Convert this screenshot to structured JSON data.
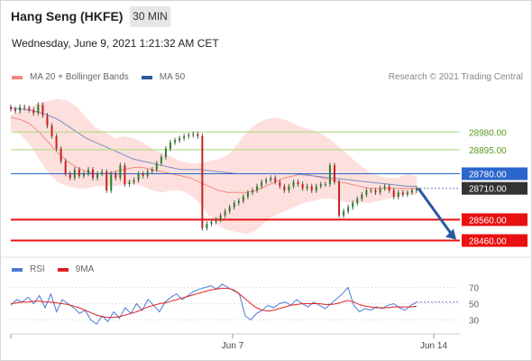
{
  "header": {
    "instrument": "Hang Seng (HKFE)",
    "timeframe": "30 MIN",
    "datetime": "Wednesday, June 9, 2021 1:21:32 AM CET"
  },
  "legend": {
    "items": [
      {
        "label": "MA 20 + Bollinger Bands",
        "color": "#f08a80"
      },
      {
        "label": "MA 50",
        "color": "#2b5aa0"
      }
    ],
    "copyright": "Research © 2021 Trading Central"
  },
  "rsi_legend": {
    "items": [
      {
        "label": "RSI",
        "color": "#4a7ad6"
      },
      {
        "label": "9MA",
        "color": "#e02020"
      }
    ]
  },
  "chart_data": {
    "type": "candlestick",
    "ylim": [
      28380,
      29180
    ],
    "x_ticks": [
      "Jun 7",
      "Jun 14"
    ],
    "levels": [
      {
        "value": 28980.0,
        "label": "28980.00",
        "kind": "resistance",
        "color": "#a8d878",
        "text_color": "#5a9a20"
      },
      {
        "value": 28895.0,
        "label": "28895.00",
        "kind": "resistance",
        "color": "#a8d878",
        "text_color": "#5a9a20"
      },
      {
        "value": 28780.0,
        "label": "28780.00",
        "kind": "pivot",
        "color": "#2a66cc",
        "text_color": "#ffffff"
      },
      {
        "value": 28710.0,
        "label": "28710.00",
        "kind": "last",
        "color": "#333333",
        "text_color": "#ffffff"
      },
      {
        "value": 28560.0,
        "label": "28560.00",
        "kind": "support",
        "color": "#e81010",
        "text_color": "#ffffff"
      },
      {
        "value": 28460.0,
        "label": "28460.00",
        "kind": "support",
        "color": "#e81010",
        "text_color": "#ffffff"
      }
    ],
    "close": [
      29090,
      29080,
      29100,
      29095,
      29085,
      29070,
      29110,
      29060,
      29010,
      28960,
      28900,
      28840,
      28780,
      28760,
      28800,
      28770,
      28780,
      28800,
      28760,
      28780,
      28790,
      28700,
      28780,
      28760,
      28820,
      28730,
      28740,
      28750,
      28780,
      28770,
      28790,
      28800,
      28830,
      28860,
      28900,
      28930,
      28940,
      28950,
      28960,
      28965,
      28970,
      28960,
      28520,
      28540,
      28550,
      28560,
      28580,
      28600,
      28620,
      28640,
      28650,
      28670,
      28690,
      28700,
      28720,
      28740,
      28750,
      28760,
      28740,
      28720,
      28700,
      28720,
      28740,
      28730,
      28710,
      28720,
      28700,
      28720,
      28730,
      28730,
      28820,
      28740,
      28580,
      28600,
      28620,
      28640,
      28660,
      28680,
      28700,
      28700,
      28690,
      28710,
      28720,
      28700,
      28670,
      28690,
      28680,
      28690,
      28700,
      28710
    ],
    "bollinger": {
      "upper": [
        29060,
        29080,
        29100,
        29120,
        29130,
        29140,
        29130,
        29100,
        29050,
        29000,
        28980,
        28950,
        28960,
        28950,
        28930,
        28900,
        28880,
        28860,
        28840,
        28830,
        28830,
        28840,
        28850,
        28870,
        28920,
        28980,
        29020,
        29040,
        29050,
        29040,
        29020,
        29000,
        28990,
        28970,
        28940,
        28900,
        28860,
        28820,
        28790,
        28770,
        28760,
        28760,
        28780,
        28770
      ],
      "lower": [
        28990,
        28970,
        28920,
        28850,
        28780,
        28740,
        28720,
        28710,
        28710,
        28720,
        28720,
        28720,
        28730,
        28730,
        28720,
        28700,
        28690,
        28700,
        28700,
        28680,
        28640,
        28580,
        28530,
        28510,
        28500,
        28490,
        28510,
        28550,
        28580,
        28600,
        28620,
        28640,
        28650,
        28660,
        28660,
        28650,
        28640,
        28640,
        28640,
        28650,
        28660,
        28670,
        28680,
        28680
      ]
    },
    "ma20": [
      29050,
      29040,
      29020,
      28980,
      28930,
      28880,
      28840,
      28810,
      28790,
      28780,
      28780,
      28790,
      28800,
      28810,
      28810,
      28800,
      28790,
      28780,
      28770,
      28760,
      28740,
      28720,
      28700,
      28690,
      28690,
      28690,
      28700,
      28720,
      28740,
      28760,
      28770,
      28780,
      28770,
      28760,
      28750,
      28740,
      28730,
      28720,
      28710,
      28710,
      28710,
      28710,
      28710,
      28710
    ],
    "ma50": [
      29095,
      29090,
      29085,
      29075,
      29060,
      29040,
      29010,
      28980,
      28950,
      28930,
      28910,
      28890,
      28870,
      28850,
      28840,
      28830,
      28820,
      28810,
      28800,
      28800,
      28800,
      28795,
      28790,
      28785,
      28780,
      28780,
      28780,
      28780,
      28780,
      28780,
      28780,
      28775,
      28770,
      28765,
      28760,
      28755,
      28750,
      28745,
      28740,
      28735,
      28730,
      28725,
      28720,
      28720
    ],
    "rsi": {
      "ticks": [
        70,
        50,
        30
      ],
      "ylim": [
        15,
        85
      ],
      "values": [
        48,
        55,
        52,
        58,
        50,
        60,
        45,
        62,
        40,
        55,
        50,
        45,
        38,
        42,
        30,
        25,
        35,
        28,
        40,
        32,
        45,
        38,
        50,
        42,
        55,
        48,
        40,
        52,
        58,
        62,
        55,
        60,
        65,
        68,
        70,
        72,
        68,
        74,
        70,
        66,
        62,
        35,
        30,
        38,
        42,
        48,
        45,
        50,
        52,
        48,
        55,
        50,
        46,
        52,
        48,
        44,
        50,
        56,
        62,
        70,
        48,
        40,
        44,
        42,
        46,
        44,
        48,
        50,
        45,
        42,
        48,
        52
      ],
      "ma9": [
        50,
        51,
        52,
        52,
        53,
        53,
        52,
        52,
        51,
        50,
        49,
        47,
        45,
        42,
        39,
        36,
        34,
        33,
        33,
        34,
        36,
        38,
        40,
        43,
        46,
        48,
        50,
        51,
        53,
        55,
        57,
        59,
        61,
        63,
        65,
        67,
        68,
        69,
        69,
        67,
        62,
        56,
        50,
        45,
        42,
        41,
        42,
        44,
        46,
        48,
        49,
        50,
        50,
        50,
        50,
        49,
        49,
        50,
        52,
        54,
        52,
        49,
        47,
        46,
        45,
        45,
        45,
        46,
        46,
        46,
        46,
        47
      ]
    }
  }
}
